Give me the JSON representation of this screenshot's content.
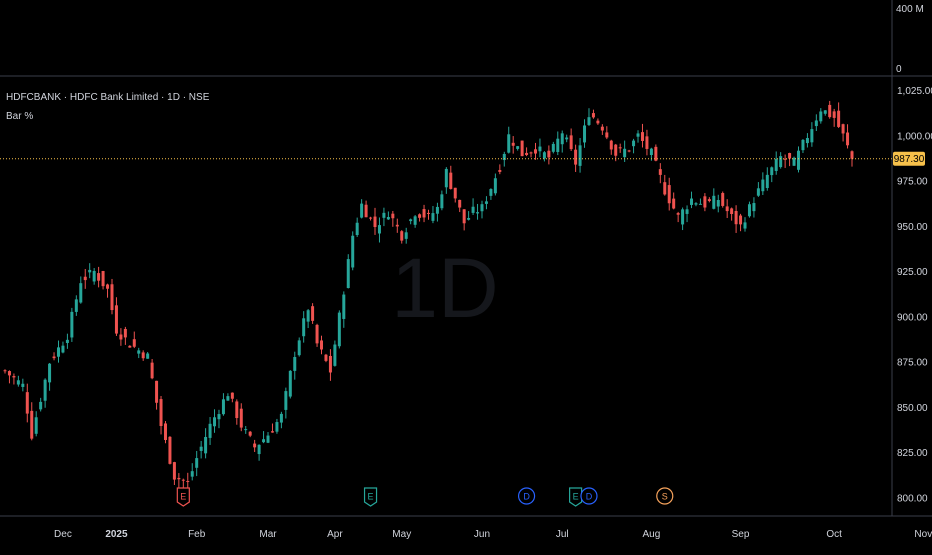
{
  "header": {
    "symbol_line": "HDFCBANK · HDFC Bank Limited · 1D · NSE",
    "indicator": "Bar %"
  },
  "watermark": "1D",
  "volume_pane": {
    "labels": [
      "400 M",
      "0"
    ]
  },
  "last_price": {
    "value": 987.3,
    "label": "987.30",
    "color": "#f7c14b"
  },
  "colors": {
    "up": "#26a69a",
    "down": "#ef5350",
    "background": "#000000",
    "text": "#d1d4dc",
    "grid_line": "#2a2e39"
  },
  "chart_data": {
    "type": "candlestick",
    "title": "HDFCBANK · HDFC Bank Limited · 1D · NSE",
    "xlabel": "",
    "ylabel": "",
    "ylim": [
      790,
      1033
    ],
    "yticks": [
      800.0,
      825.0,
      850.0,
      875.0,
      900.0,
      925.0,
      950.0,
      975.0,
      1000.0,
      1025.0
    ],
    "ytick_labels": [
      "800.00",
      "825.00",
      "850.00",
      "875.00",
      "900.00",
      "925.00",
      "950.00",
      "975.00",
      "1,000.00",
      "1,025.00"
    ],
    "xtick_labels": [
      "Dec",
      "2025",
      "Feb",
      "Mar",
      "Apr",
      "May",
      "Jun",
      "Jul",
      "Aug",
      "Sep",
      "Oct",
      "Nov"
    ],
    "xtick_bar_index": [
      13,
      25,
      43,
      59,
      74,
      89,
      107,
      125,
      145,
      165,
      186,
      206
    ],
    "close_path": [
      [
        0,
        870
      ],
      [
        4,
        862
      ],
      [
        6,
        835
      ],
      [
        10,
        875
      ],
      [
        14,
        890
      ],
      [
        17,
        920
      ],
      [
        20,
        925
      ],
      [
        23,
        915
      ],
      [
        25,
        893
      ],
      [
        28,
        885
      ],
      [
        32,
        878
      ],
      [
        35,
        840
      ],
      [
        38,
        812
      ],
      [
        41,
        808
      ],
      [
        43,
        822
      ],
      [
        46,
        840
      ],
      [
        50,
        858
      ],
      [
        53,
        840
      ],
      [
        56,
        828
      ],
      [
        59,
        835
      ],
      [
        62,
        845
      ],
      [
        65,
        880
      ],
      [
        68,
        905
      ],
      [
        70,
        885
      ],
      [
        73,
        870
      ],
      [
        75,
        900
      ],
      [
        78,
        945
      ],
      [
        80,
        962
      ],
      [
        83,
        950
      ],
      [
        86,
        958
      ],
      [
        89,
        945
      ],
      [
        92,
        958
      ],
      [
        95,
        955
      ],
      [
        97,
        960
      ],
      [
        99,
        980
      ],
      [
        103,
        952
      ],
      [
        105,
        958
      ],
      [
        107,
        960
      ],
      [
        111,
        983
      ],
      [
        113,
        1000
      ],
      [
        116,
        990
      ],
      [
        119,
        993
      ],
      [
        122,
        988
      ],
      [
        125,
        1002
      ],
      [
        128,
        985
      ],
      [
        131,
        1013
      ],
      [
        134,
        1005
      ],
      [
        137,
        990
      ],
      [
        140,
        993
      ],
      [
        142,
        1000
      ],
      [
        145,
        990
      ],
      [
        148,
        970
      ],
      [
        151,
        955
      ],
      [
        154,
        965
      ],
      [
        157,
        962
      ],
      [
        160,
        965
      ],
      [
        163,
        955
      ],
      [
        165,
        950
      ],
      [
        168,
        965
      ],
      [
        171,
        978
      ],
      [
        174,
        988
      ],
      [
        177,
        985
      ],
      [
        180,
        1000
      ],
      [
        183,
        1015
      ],
      [
        186,
        1010
      ],
      [
        188,
        1000
      ],
      [
        190,
        987.3
      ]
    ],
    "events": [
      {
        "label": "E",
        "bar_index": 40,
        "color": "#ef5350"
      },
      {
        "label": "E",
        "bar_index": 82,
        "color": "#26a69a"
      },
      {
        "label": "D",
        "bar_index": 117,
        "color": "#2962ff"
      },
      {
        "label": "E",
        "bar_index": 128,
        "color": "#26a69a"
      },
      {
        "label": "D",
        "bar_index": 131,
        "color": "#2962ff"
      },
      {
        "label": "S",
        "bar_index": 148,
        "color": "#f7a35c"
      }
    ]
  }
}
